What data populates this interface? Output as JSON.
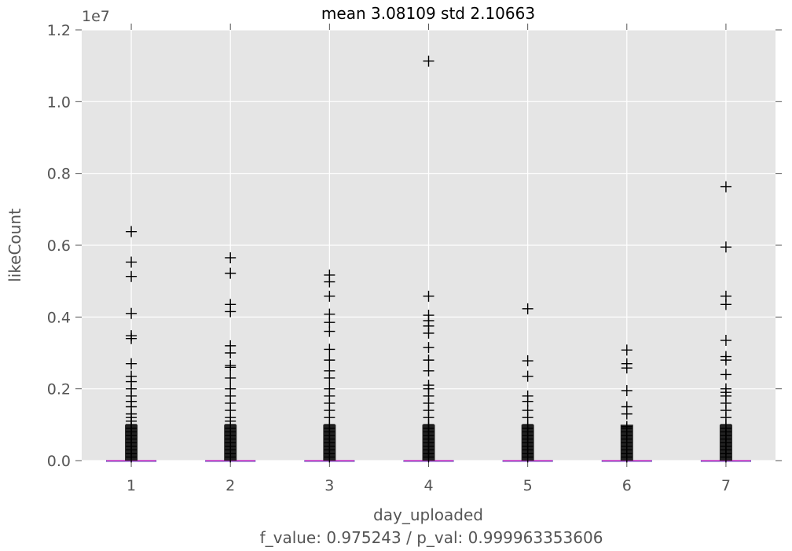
{
  "chart_data": {
    "type": "box",
    "title": "mean 3.08109 std 2.10663",
    "xlabel": "day_uploaded",
    "ylabel": "likeCount",
    "footnote": "f_value: 0.975243 / p_val: 0.999963353606",
    "y_offset_label": "1e7",
    "y_scale": 10000000,
    "ylim": [
      0,
      1.2
    ],
    "yticks": [
      0.0,
      0.2,
      0.4,
      0.6,
      0.8,
      1.0,
      1.2
    ],
    "ytick_labels": [
      "0.0",
      "0.2",
      "0.4",
      "0.6",
      "0.8",
      "1.0",
      "1.2"
    ],
    "categories": [
      "1",
      "2",
      "3",
      "4",
      "5",
      "6",
      "7"
    ],
    "grid": true,
    "style": {
      "plot_background": "#e5e5e5",
      "grid_color": "#ffffff",
      "outlier_color": "#000000",
      "median_color": "#cc55cc"
    },
    "series": [
      {
        "category": "1",
        "median": 0.0,
        "q1": 0.0,
        "q3": 0.0,
        "outliers": [
          0.638,
          0.553,
          0.513,
          0.41,
          0.348,
          0.34,
          0.27,
          0.235,
          0.22,
          0.2,
          0.18,
          0.165,
          0.15,
          0.13,
          0.12,
          0.11,
          0.1,
          0.09,
          0.08,
          0.07,
          0.06,
          0.05,
          0.04,
          0.03,
          0.02,
          0.01
        ]
      },
      {
        "category": "2",
        "median": 0.0,
        "q1": 0.0,
        "q3": 0.0,
        "outliers": [
          0.565,
          0.522,
          0.435,
          0.415,
          0.32,
          0.3,
          0.265,
          0.26,
          0.23,
          0.2,
          0.18,
          0.16,
          0.14,
          0.12,
          0.11,
          0.1,
          0.09,
          0.08,
          0.07,
          0.06,
          0.05,
          0.04,
          0.03,
          0.02,
          0.01
        ]
      },
      {
        "category": "3",
        "median": 0.0,
        "q1": 0.0,
        "q3": 0.0,
        "outliers": [
          0.517,
          0.498,
          0.458,
          0.408,
          0.385,
          0.36,
          0.31,
          0.28,
          0.25,
          0.23,
          0.2,
          0.18,
          0.16,
          0.14,
          0.12,
          0.1,
          0.09,
          0.08,
          0.07,
          0.06,
          0.05,
          0.04,
          0.03,
          0.02,
          0.01
        ]
      },
      {
        "category": "4",
        "median": 0.0,
        "q1": 0.0,
        "q3": 0.0,
        "outliers": [
          1.113,
          0.458,
          0.405,
          0.39,
          0.375,
          0.355,
          0.315,
          0.28,
          0.25,
          0.21,
          0.2,
          0.18,
          0.16,
          0.14,
          0.12,
          0.1,
          0.09,
          0.08,
          0.07,
          0.06,
          0.05,
          0.04,
          0.03,
          0.02,
          0.01
        ]
      },
      {
        "category": "5",
        "median": 0.0,
        "q1": 0.0,
        "q3": 0.0,
        "outliers": [
          0.423,
          0.278,
          0.235,
          0.18,
          0.165,
          0.14,
          0.12,
          0.1,
          0.09,
          0.08,
          0.07,
          0.06,
          0.05,
          0.04,
          0.03,
          0.02,
          0.01
        ]
      },
      {
        "category": "6",
        "median": 0.0,
        "q1": 0.0,
        "q3": 0.0,
        "outliers": [
          0.308,
          0.27,
          0.258,
          0.195,
          0.15,
          0.13,
          0.095,
          0.09,
          0.08,
          0.07,
          0.06,
          0.05,
          0.04,
          0.03,
          0.02,
          0.01
        ]
      },
      {
        "category": "7",
        "median": 0.0,
        "q1": 0.0,
        "q3": 0.0,
        "outliers": [
          0.763,
          0.595,
          0.458,
          0.435,
          0.335,
          0.29,
          0.28,
          0.24,
          0.2,
          0.19,
          0.18,
          0.16,
          0.14,
          0.12,
          0.1,
          0.09,
          0.08,
          0.07,
          0.06,
          0.05,
          0.04,
          0.03,
          0.02,
          0.01
        ]
      }
    ]
  }
}
